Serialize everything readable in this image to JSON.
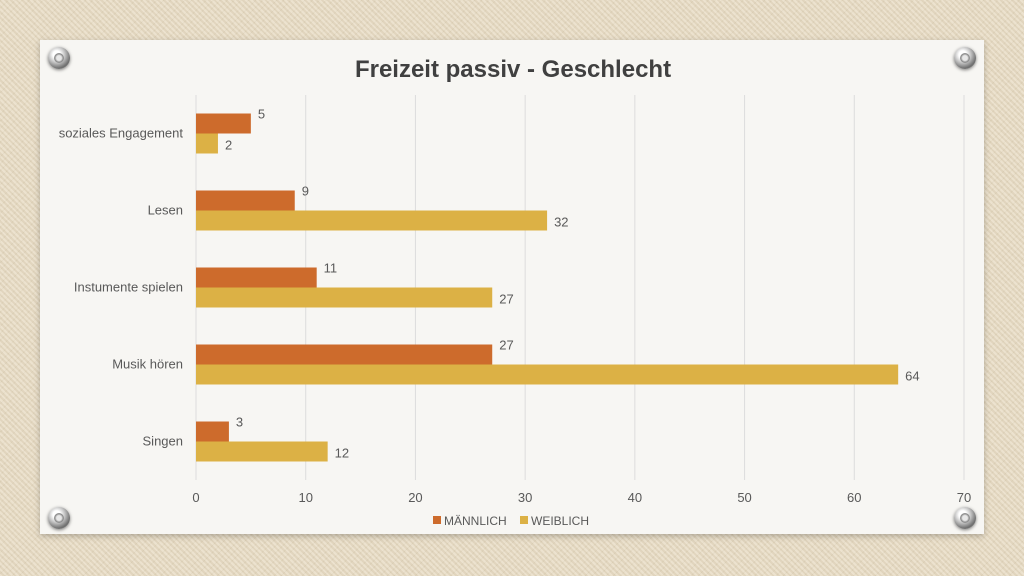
{
  "chart_data": {
    "type": "bar",
    "orientation": "horizontal",
    "title": "Freizeit passiv - Geschlecht",
    "categories": [
      "soziales Engagement",
      "Lesen",
      "Instumente spielen",
      "Musik hören",
      "Singen"
    ],
    "series": [
      {
        "name": "MÄNNLICH",
        "color": "#cd6b2c",
        "values": [
          5,
          9,
          11,
          27,
          3
        ]
      },
      {
        "name": "WEIBLICH",
        "color": "#dcb145",
        "values": [
          2,
          32,
          27,
          64,
          12
        ]
      }
    ],
    "xlim": [
      0,
      70
    ],
    "xticks": [
      0,
      10,
      20,
      30,
      40,
      50,
      60,
      70
    ],
    "grid": true,
    "legend": "bottom",
    "data_labels": true
  }
}
